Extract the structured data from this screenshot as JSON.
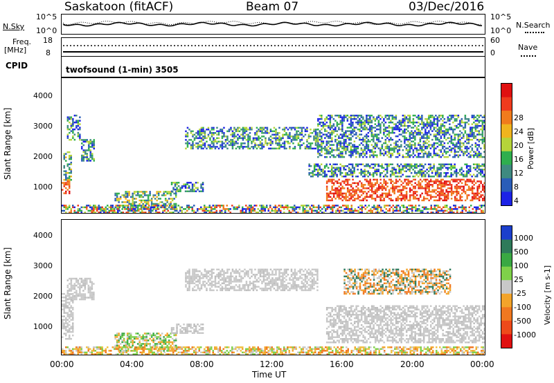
{
  "header": {
    "station": "Saskatoon (fitACF)",
    "beam": "Beam 07",
    "date": "03/Dec/2016"
  },
  "noise_panel": {
    "left_label": "N.Sky",
    "left_ticks": [
      "10^5",
      "10^0"
    ],
    "right_ticks": [
      "10^5",
      "10^0"
    ],
    "right_label": "N.Search",
    "right_legend_style": "dotted"
  },
  "freq_panel": {
    "left_label_line1": "Freq.",
    "left_label_line2": "[MHz]",
    "left_ticks": [
      "18",
      "8"
    ],
    "right_ticks": [
      "60",
      "0"
    ],
    "right_label": "Nave",
    "right_legend_style": "dotted"
  },
  "cpid_panel": {
    "left_label": "CPID",
    "text": "twofsound (1-min) 3505"
  },
  "x_axis": {
    "label": "Time UT",
    "ticks": [
      "00:00",
      "04:00",
      "08:00",
      "12:00",
      "16:00",
      "20:00",
      "00:00"
    ]
  },
  "chart_data": [
    {
      "type": "heatmap",
      "panel": "power",
      "ylabel": "Slant Range [km]",
      "ylim": [
        180,
        4600
      ],
      "yticks": [
        "1000",
        "2000",
        "3000",
        "4000"
      ],
      "xlim_hours": [
        0,
        24
      ],
      "colorbar": {
        "label": "Power [dB]",
        "tick_labels": [
          "4",
          "8",
          "12",
          "16",
          "20",
          "24",
          "28"
        ],
        "colors": [
          "#1c22e6",
          "#2a5db8",
          "#3f8a80",
          "#2fae4e",
          "#b6d43a",
          "#f0b41e",
          "#f07b1c",
          "#ef3b1d",
          "#e01010"
        ]
      },
      "regions": [
        {
          "t_start": 0.0,
          "t_end": 0.4,
          "r_low": 800,
          "r_high": 1250,
          "level": "high"
        },
        {
          "t_start": 0.1,
          "t_end": 0.5,
          "r_low": 1250,
          "r_high": 2200,
          "level": "mid"
        },
        {
          "t_start": 0.3,
          "t_end": 1.0,
          "r_low": 2600,
          "r_high": 3400,
          "level": "low"
        },
        {
          "t_start": 1.1,
          "t_end": 1.8,
          "r_low": 1900,
          "r_high": 2600,
          "level": "low"
        },
        {
          "t_start": 3.0,
          "t_end": 6.5,
          "r_low": 300,
          "r_high": 900,
          "level": "mid"
        },
        {
          "t_start": 6.2,
          "t_end": 8.0,
          "r_low": 900,
          "r_high": 1200,
          "level": "low"
        },
        {
          "t_start": 7.0,
          "t_end": 14.5,
          "r_low": 2300,
          "r_high": 3000,
          "level": "low"
        },
        {
          "t_start": 14.0,
          "t_end": 24.0,
          "r_low": 1400,
          "r_high": 1800,
          "level": "low"
        },
        {
          "t_start": 15.0,
          "t_end": 24.0,
          "r_low": 600,
          "r_high": 1300,
          "level": "high"
        },
        {
          "t_start": 14.5,
          "t_end": 24.0,
          "r_low": 2000,
          "r_high": 3400,
          "level": "low"
        },
        {
          "t_start": 0.0,
          "t_end": 24.0,
          "r_low": 180,
          "r_high": 450,
          "level": "ground"
        }
      ]
    },
    {
      "type": "heatmap",
      "panel": "velocity",
      "ylabel": "Slant Range [km]",
      "ylim": [
        180,
        4600
      ],
      "yticks": [
        "1000",
        "2000",
        "3000",
        "4000"
      ],
      "xlim_hours": [
        0,
        24
      ],
      "colorbar": {
        "label": "Velocity [m s-1]",
        "tick_labels": [
          "1000",
          "500",
          "100",
          "25",
          "-25",
          "-100",
          "-500",
          "-1000"
        ],
        "colors": [
          "#1c3fcc",
          "#2e7a5a",
          "#39a843",
          "#7fd14a",
          "#c8c8c8",
          "#f3a42a",
          "#f07820",
          "#ee4a1a",
          "#e01010"
        ]
      },
      "regions": [
        {
          "t_start": 0.0,
          "t_end": 0.6,
          "r_low": 700,
          "r_high": 2200,
          "level": "gray"
        },
        {
          "t_start": 0.3,
          "t_end": 1.8,
          "r_low": 2000,
          "r_high": 2700,
          "level": "gray"
        },
        {
          "t_start": 3.0,
          "t_end": 6.5,
          "r_low": 300,
          "r_high": 900,
          "level": "green"
        },
        {
          "t_start": 6.2,
          "t_end": 8.0,
          "r_low": 900,
          "r_high": 1200,
          "level": "gray"
        },
        {
          "t_start": 7.0,
          "t_end": 14.5,
          "r_low": 2300,
          "r_high": 3000,
          "level": "gray"
        },
        {
          "t_start": 15.0,
          "t_end": 24.0,
          "r_low": 600,
          "r_high": 1800,
          "level": "gray"
        },
        {
          "t_start": 16.0,
          "t_end": 22.0,
          "r_low": 2200,
          "r_high": 3000,
          "level": "orange"
        },
        {
          "t_start": 0.0,
          "t_end": 24.0,
          "r_low": 180,
          "r_high": 450,
          "level": "yellow"
        }
      ]
    }
  ]
}
